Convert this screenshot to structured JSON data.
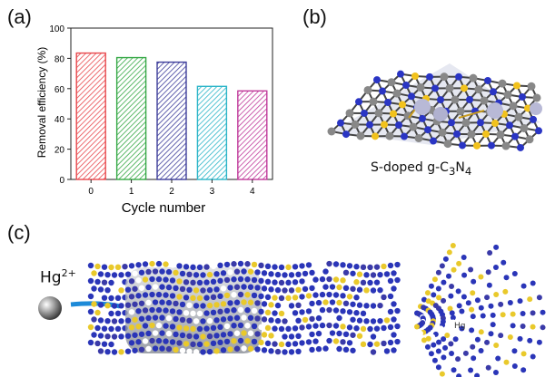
{
  "panels": {
    "a": "(a)",
    "b": "(b)",
    "c": "(c)"
  },
  "chart_data": {
    "type": "bar",
    "categories": [
      "0",
      "1",
      "2",
      "3",
      "4"
    ],
    "values": [
      83.5,
      80.5,
      77.5,
      61.5,
      58.5
    ],
    "colors": [
      "#e8474c",
      "#35a845",
      "#3c3c9a",
      "#2bb5c8",
      "#c0399a"
    ],
    "xlabel": "Cycle number",
    "ylabel": "Removal efficiency (%)",
    "ylim": [
      0,
      100
    ],
    "yticks": [
      0,
      20,
      40,
      60,
      80,
      100
    ],
    "grid": false
  },
  "molecule_b": {
    "caption_prefix": "S-doped g-C",
    "caption_sub1": "3",
    "caption_mid": "N",
    "caption_sub2": "4"
  },
  "nanotube_c": {
    "ion_label": "Hg",
    "ion_charge": "2+",
    "ion_label_inner": "Hg"
  }
}
